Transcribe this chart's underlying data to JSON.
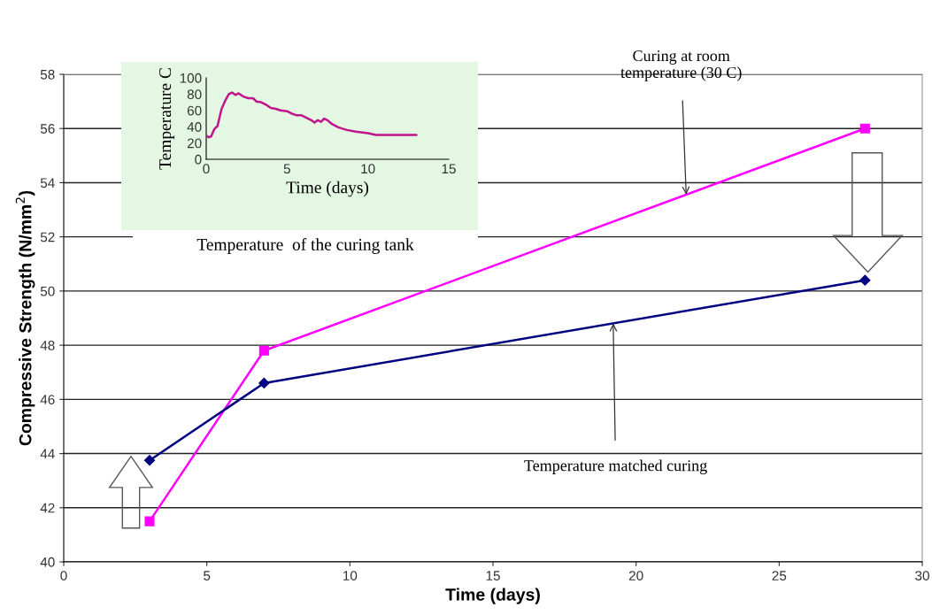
{
  "chart_data": [
    {
      "type": "line",
      "xlabel": "Time (days)",
      "ylabel": "Compressive Strength (N/mm$^{2}$)",
      "x": [
        3,
        7,
        28
      ],
      "series": [
        {
          "color": "#ff00ff",
          "values": [
            41.5,
            47.8,
            56
          ],
          "marker": "square"
        },
        {
          "color": "#000080",
          "values": [
            43.75,
            46.6,
            50.4
          ],
          "marker": "diamond"
        }
      ],
      "xlim": [
        0,
        30
      ],
      "xticks": [
        0,
        5,
        10,
        15,
        20,
        25,
        30
      ],
      "ylim": [
        40,
        58
      ],
      "yticks": [
        40,
        42,
        44,
        46,
        48,
        50,
        52,
        54,
        56,
        58
      ],
      "grid": "y",
      "legend": false,
      "annotations": [
        {
          "text": "Curing at room\ntemperature (30 C)",
          "x": 21.75,
          "y": 53.56
        },
        {
          "text": "Temperature matched curing",
          "x": 19.2,
          "y": 48.81
        }
      ]
    },
    {
      "type": "line",
      "title": "Temperature  of the curing tank",
      "xlabel": "Time (days)",
      "ylabel": "Temperature C",
      "x": [
        0,
        0.15,
        0.3,
        0.5,
        0.7,
        0.95,
        1.2,
        1.4,
        1.6,
        1.8,
        2.0,
        2.3,
        2.6,
        2.9,
        3.1,
        3.4,
        3.7,
        4.0,
        4.3,
        4.6,
        5.0,
        5.3,
        5.6,
        5.9,
        6.2,
        6.5,
        6.7,
        6.9,
        7.1,
        7.3,
        7.5,
        7.8,
        8.2,
        8.7,
        9.25,
        10,
        10.5,
        11,
        12,
        13
      ],
      "series": [
        {
          "color": "#c0148c",
          "values": [
            29,
            27,
            28,
            37,
            41,
            62,
            73,
            80,
            82,
            79,
            81,
            77,
            75,
            75,
            71,
            70,
            67,
            63,
            62,
            60,
            59,
            56,
            54,
            54,
            51,
            48,
            45,
            48,
            46,
            50,
            48,
            43,
            39,
            36,
            34,
            32,
            30,
            30,
            30,
            30
          ]
        }
      ],
      "xlim": [
        0,
        15
      ],
      "xticks": [
        0,
        5,
        10,
        15
      ],
      "ylim": [
        0,
        100
      ],
      "yticks": [
        0,
        20,
        40,
        60,
        80,
        100
      ],
      "grid": false,
      "legend": false
    }
  ]
}
